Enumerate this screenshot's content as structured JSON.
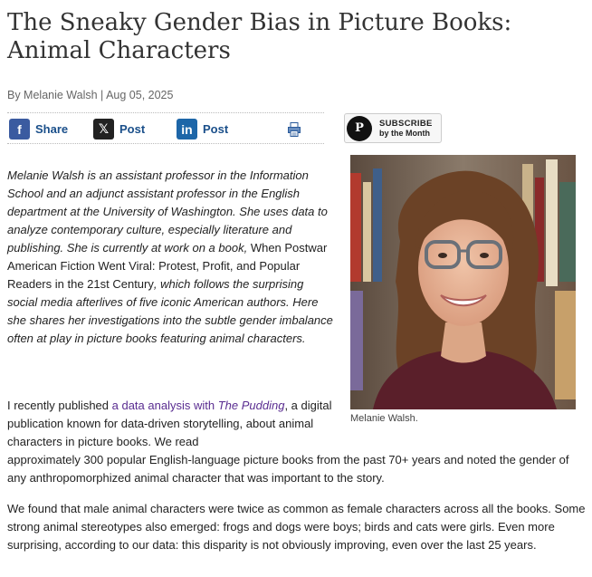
{
  "article": {
    "title": "The Sneaky Gender Bias in Picture Books: Animal Characters",
    "byline": "By Melanie Walsh | Aug 05, 2025"
  },
  "share": {
    "facebook_label": "Share",
    "x_label": "Post",
    "linkedin_label": "Post",
    "icons": [
      "facebook-icon",
      "x-icon",
      "linkedin-icon",
      "print-icon"
    ]
  },
  "subscribe": {
    "line1": "SUBSCRIBE",
    "line2": "by the Month",
    "logo_letter": "P"
  },
  "photo": {
    "caption": "Melanie Walsh."
  },
  "intro": {
    "part1": "Melanie Walsh is an assistant professor in the Information School and an adjunct assistant professor in the English department at the University of Washington. She uses data to analyze contemporary culture, especially literature and publishing. She is currently at work on a book, ",
    "book_title": "When Postwar American Fiction Went Viral: Protest, Profit, and Popular Readers in the 21st Century",
    "part2": ", which follows the surprising social media afterlives of five iconic American authors. Here she shares her investigations into the subtle gender imbalance often at play in picture books featuring animal characters."
  },
  "body": {
    "p1_start": "I recently published ",
    "p1_link_text": "a data analysis with ",
    "p1_link_italic": "The Pudding",
    "p1_after": ", a digital publication known for data-driven storytelling, about animal characters in picture books. We read",
    "p1_rest": "approximately 300 popular English-language picture books from the past 70+ years and noted the gender of any anthropomorphized animal character that was important to the story.",
    "p2": "We found that male animal characters were twice as common as female characters across all the books. Some strong animal stereotypes also emerged: frogs and dogs were boys; birds and cats were girls. Even more surprising, according to our data: this disparity is not obviously improving, even over the last 25 years."
  },
  "colors": {
    "link": "#5a2d91",
    "share_label": "#1a4f8a",
    "facebook": "#3b5ba0",
    "linkedin": "#1d66a8"
  }
}
